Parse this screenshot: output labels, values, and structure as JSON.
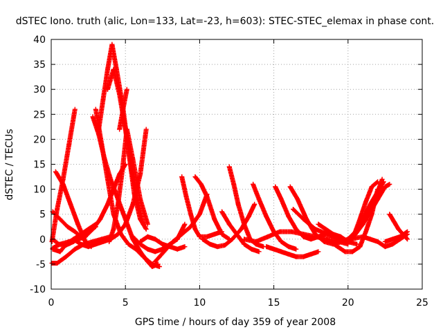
{
  "chart_data": {
    "type": "scatter",
    "title": "dSTEC Iono. truth (alic, Lon=133, Lat=-23, h=603): STEC-STEC_elemax in phase cont.",
    "xlabel": "GPS time / hours of day 359 of year 2008",
    "ylabel": "dSTEC  / TECUs",
    "xlim": [
      0,
      25
    ],
    "ylim": [
      -10,
      40
    ],
    "xticks": [
      0,
      5,
      10,
      15,
      20,
      25
    ],
    "yticks": [
      -10,
      -5,
      0,
      5,
      10,
      15,
      20,
      25,
      30,
      35,
      40
    ],
    "grid": true,
    "marker": "+",
    "color": "#ff0000",
    "series": [
      {
        "x": [
          0.05,
          0.4,
          0.8,
          1.2,
          1.6
        ],
        "y": [
          -0.5,
          6.0,
          12.0,
          19.0,
          26.0
        ]
      },
      {
        "x": [
          0.1,
          0.5,
          1.0,
          1.5,
          2.0,
          2.5,
          3.0
        ],
        "y": [
          0.0,
          -1.0,
          -1.2,
          -0.5,
          0.5,
          1.5,
          2.5
        ]
      },
      {
        "x": [
          0.3,
          0.8,
          1.3,
          1.8,
          2.3
        ],
        "y": [
          13.5,
          11.0,
          7.0,
          3.0,
          -0.5
        ]
      },
      {
        "x": [
          0.1,
          0.6,
          1.1,
          1.6,
          2.1,
          2.7
        ],
        "y": [
          5.5,
          4.0,
          2.5,
          1.5,
          0.2,
          -1.5
        ]
      },
      {
        "x": [
          0.1,
          0.6,
          1.0,
          1.5,
          2.0,
          2.5,
          3.0
        ],
        "y": [
          -2.0,
          -2.5,
          -1.0,
          0.0,
          1.0,
          2.0,
          3.0
        ]
      },
      {
        "x": [
          0.05,
          0.4,
          1.0,
          1.6,
          2.2,
          2.8,
          3.4,
          4.0
        ],
        "y": [
          -4.8,
          -4.8,
          -3.5,
          -2.0,
          -1.0,
          -0.5,
          0.0,
          0.5
        ]
      },
      {
        "x": [
          0.1,
          0.6,
          1.2,
          1.8,
          2.3,
          2.8,
          3.3,
          3.8,
          4.2,
          4.6,
          5.0
        ],
        "y": [
          -1.8,
          -1.0,
          -0.5,
          0.0,
          0.5,
          2.0,
          4.0,
          7.0,
          10.0,
          13.0,
          15.0
        ]
      },
      {
        "x": [
          1.5,
          2.0,
          2.5,
          3.0,
          3.5,
          4.0,
          4.5,
          5.0,
          5.5,
          6.0,
          6.4
        ],
        "y": [
          0.0,
          -1.0,
          -1.5,
          -1.0,
          -0.5,
          0.0,
          1.0,
          3.0,
          7.0,
          13.0,
          22.0
        ]
      },
      {
        "x": [
          2.8,
          3.2,
          3.6,
          4.0,
          4.5,
          5.0,
          5.5,
          6.0,
          6.5,
          6.8,
          7.2
        ],
        "y": [
          24.5,
          21.0,
          16.0,
          12.0,
          8.0,
          4.0,
          0.0,
          -2.5,
          -4.5,
          -5.5,
          -5.0
        ]
      },
      {
        "x": [
          3.0,
          3.4,
          3.8,
          4.2,
          4.7,
          5.2,
          5.7,
          6.2,
          6.8,
          7.3
        ],
        "y": [
          26.0,
          19.0,
          12.0,
          5.0,
          1.0,
          -1.0,
          -2.0,
          -3.5,
          -5.0,
          -5.5
        ]
      },
      {
        "x": [
          3.2,
          3.5,
          3.8,
          4.1,
          4.4,
          4.8,
          5.2,
          5.6,
          6.0,
          6.4
        ],
        "y": [
          22.0,
          28.0,
          34.0,
          39.0,
          34.0,
          27.0,
          18.0,
          9.0,
          4.0,
          2.0
        ]
      },
      {
        "x": [
          3.8,
          4.2,
          4.6,
          5.0,
          5.4,
          5.8,
          6.2
        ],
        "y": [
          30.0,
          34.0,
          29.0,
          22.0,
          14.0,
          8.0,
          3.0
        ]
      },
      {
        "x": [
          3.9,
          4.2,
          4.5,
          4.8,
          5.1,
          5.5,
          6.0,
          6.5
        ],
        "y": [
          -0.5,
          2.0,
          7.0,
          14.0,
          22.0,
          16.0,
          8.0,
          3.0
        ]
      },
      {
        "x": [
          4.6,
          4.9,
          5.1
        ],
        "y": [
          22.0,
          27.0,
          30.0
        ]
      },
      {
        "x": [
          5.5,
          6.0,
          6.5,
          7.0,
          7.5,
          8.0,
          8.5,
          9.0
        ],
        "y": [
          0.5,
          -1.0,
          -2.0,
          -2.5,
          -2.0,
          -1.0,
          0.0,
          3.0
        ]
      },
      {
        "x": [
          6.0,
          6.5,
          7.0,
          7.5,
          8.0,
          8.5,
          9.0
        ],
        "y": [
          -0.5,
          0.5,
          0.0,
          -1.0,
          -1.5,
          -2.0,
          -1.5
        ]
      },
      {
        "x": [
          7.0,
          7.6,
          8.2,
          8.8,
          9.4,
          10.0,
          10.5
        ],
        "y": [
          -4.5,
          -2.5,
          -0.5,
          1.0,
          2.5,
          5.0,
          9.0
        ]
      },
      {
        "x": [
          8.8,
          9.1,
          9.4,
          9.7,
          10.0,
          10.5,
          11.0,
          11.5
        ],
        "y": [
          12.5,
          8.5,
          5.0,
          2.0,
          0.5,
          0.5,
          1.0,
          1.5
        ]
      },
      {
        "x": [
          9.7,
          10.1,
          10.5,
          11.0,
          11.5,
          12.0
        ],
        "y": [
          12.5,
          11.0,
          8.5,
          4.0,
          1.0,
          0.0
        ]
      },
      {
        "x": [
          10.2,
          10.7,
          11.2,
          11.7,
          12.2,
          12.8,
          13.3,
          13.7
        ],
        "y": [
          0.0,
          -1.0,
          -1.5,
          -1.2,
          0.0,
          2.0,
          4.5,
          7.0
        ]
      },
      {
        "x": [
          12.0,
          12.3,
          12.6,
          13.0,
          13.4,
          13.8,
          14.3
        ],
        "y": [
          14.5,
          11.0,
          7.0,
          3.0,
          0.0,
          -1.0,
          -1.5
        ]
      },
      {
        "x": [
          11.5,
          12.0,
          12.5,
          13.0,
          13.5,
          14.0
        ],
        "y": [
          5.5,
          3.0,
          1.0,
          -1.0,
          -2.0,
          -2.5
        ]
      },
      {
        "x": [
          13.6,
          14.0,
          14.5,
          15.0,
          15.5,
          16.0,
          16.5
        ],
        "y": [
          11.0,
          8.0,
          4.5,
          1.5,
          -0.5,
          -1.5,
          -2.0
        ]
      },
      {
        "x": [
          14.5,
          15.0,
          15.5,
          16.0,
          16.5,
          17.0,
          17.5,
          18.0
        ],
        "y": [
          -1.5,
          -2.0,
          -2.5,
          -3.0,
          -3.5,
          -3.5,
          -3.0,
          -2.5
        ]
      },
      {
        "x": [
          15.1,
          15.5,
          16.0,
          16.5,
          17.0,
          17.5,
          18.0,
          18.5
        ],
        "y": [
          10.5,
          8.0,
          4.5,
          2.0,
          0.5,
          0.0,
          0.5,
          1.0
        ]
      },
      {
        "x": [
          13.0,
          13.8,
          14.6,
          15.4,
          16.2,
          17.0,
          17.8,
          18.6,
          19.4,
          20.0
        ],
        "y": [
          0.0,
          -0.5,
          0.5,
          1.5,
          1.5,
          1.0,
          0.5,
          0.0,
          -0.5,
          -1.0
        ]
      },
      {
        "x": [
          16.1,
          16.6,
          17.2,
          17.8,
          18.4,
          19.0,
          19.6,
          20.2
        ],
        "y": [
          10.5,
          8.0,
          4.0,
          1.0,
          -0.5,
          -1.0,
          -0.5,
          0.0
        ]
      },
      {
        "x": [
          16.3,
          17.0,
          17.8,
          18.6,
          19.4,
          20.0,
          20.6
        ],
        "y": [
          6.0,
          4.0,
          2.0,
          1.0,
          0.0,
          -0.5,
          -1.0
        ]
      },
      {
        "x": [
          18.0,
          18.5,
          19.0,
          19.5,
          20.0,
          20.5,
          21.0,
          21.5,
          22.0,
          22.3
        ],
        "y": [
          3.0,
          2.0,
          1.0,
          0.5,
          -0.5,
          1.0,
          3.5,
          6.0,
          9.5,
          12.0
        ]
      },
      {
        "x": [
          18.8,
          19.3,
          19.8,
          20.3,
          20.8,
          21.2,
          21.6,
          22.0
        ],
        "y": [
          -0.5,
          -1.5,
          -2.5,
          -2.5,
          -1.5,
          1.5,
          5.0,
          10.0
        ]
      },
      {
        "x": [
          19.5,
          20.0,
          20.5,
          21.0,
          21.5,
          22.0,
          22.4
        ],
        "y": [
          -0.5,
          0.0,
          1.5,
          4.0,
          7.0,
          9.5,
          11.5
        ]
      },
      {
        "x": [
          20.0,
          20.5,
          21.0,
          21.5,
          22.0,
          22.5,
          22.8
        ],
        "y": [
          -0.5,
          1.0,
          3.0,
          5.5,
          8.0,
          10.5,
          11.0
        ]
      },
      {
        "x": [
          20.3,
          20.8,
          21.2,
          21.6,
          22.0
        ],
        "y": [
          0.0,
          4.0,
          7.5,
          10.5,
          11.5
        ]
      },
      {
        "x": [
          20.0,
          20.5,
          21.0,
          21.5,
          22.0,
          22.5,
          23.0,
          23.5,
          24.0
        ],
        "y": [
          0.0,
          0.2,
          0.5,
          0.0,
          -0.5,
          -1.5,
          -1.0,
          0.0,
          1.0
        ]
      },
      {
        "x": [
          22.8,
          23.1,
          23.4,
          23.7,
          24.0
        ],
        "y": [
          5.0,
          3.5,
          2.0,
          1.0,
          0.0
        ]
      },
      {
        "x": [
          22.5,
          23.0,
          23.5,
          24.0
        ],
        "y": [
          -0.5,
          0.0,
          0.5,
          1.5
        ]
      }
    ]
  }
}
